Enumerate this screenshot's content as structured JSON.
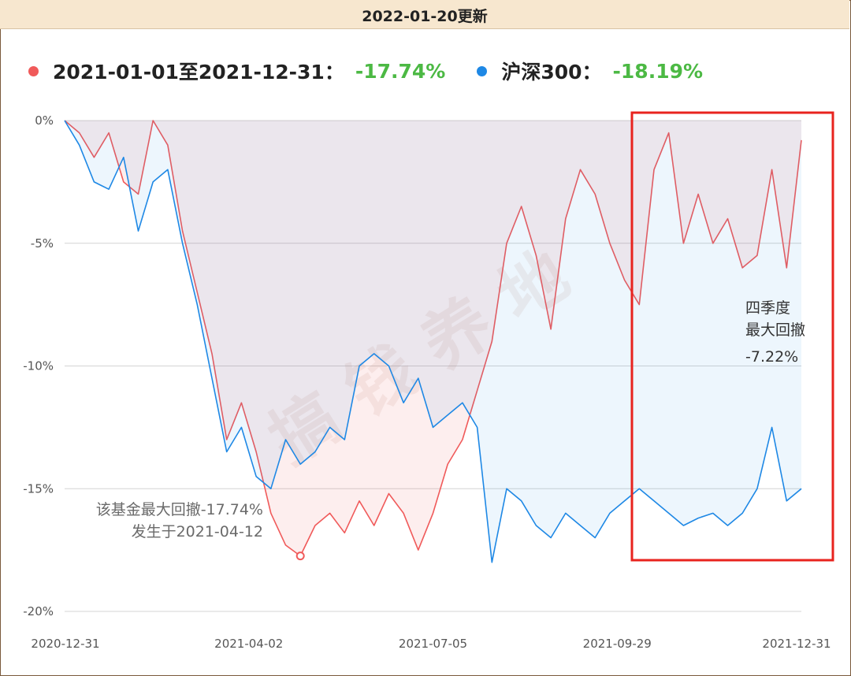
{
  "header": {
    "title": "2022-01-20更新"
  },
  "legend": {
    "fund_label": "2021-01-01至2021-12-31：",
    "fund_value": "-17.74%",
    "index_label": "沪深300：",
    "index_value": "-18.19%"
  },
  "colors": {
    "fund": "#f05a5a",
    "index": "#1e88e5",
    "value_green": "#4cb944",
    "box": "#e8231e"
  },
  "watermark": "搞钱养地",
  "chart_data": {
    "type": "area",
    "ylim": [
      -20,
      0
    ],
    "ytick_labels": [
      "0%",
      "-5%",
      "-10%",
      "-15%",
      "-20%"
    ],
    "xtick_labels": [
      "2020-12-31",
      "2021-04-02",
      "2021-07-05",
      "2021-09-29",
      "2021-12-31"
    ],
    "x": [
      0,
      0.02,
      0.04,
      0.06,
      0.08,
      0.1,
      0.12,
      0.14,
      0.16,
      0.18,
      0.2,
      0.22,
      0.24,
      0.26,
      0.28,
      0.3,
      0.32,
      0.34,
      0.36,
      0.38,
      0.4,
      0.42,
      0.44,
      0.46,
      0.48,
      0.5,
      0.52,
      0.54,
      0.56,
      0.58,
      0.6,
      0.62,
      0.64,
      0.66,
      0.68,
      0.7,
      0.72,
      0.74,
      0.76,
      0.78,
      0.8,
      0.82,
      0.84,
      0.86,
      0.88,
      0.9,
      0.92,
      0.94,
      0.96,
      0.98,
      1.0
    ],
    "series": [
      {
        "name": "2021-01-01至2021-12-31",
        "color": "#f05a5a",
        "values": [
          0,
          -0.5,
          -1.5,
          -0.5,
          -2.5,
          -3.0,
          0,
          -1.0,
          -4.5,
          -7.0,
          -9.5,
          -13.0,
          -11.5,
          -13.5,
          -16.0,
          -17.3,
          -17.74,
          -16.5,
          -16.0,
          -16.8,
          -15.5,
          -16.5,
          -15.2,
          -16.0,
          -17.5,
          -16.0,
          -14.0,
          -13.0,
          -11.0,
          -9.0,
          -5.0,
          -3.5,
          -5.5,
          -8.5,
          -4.0,
          -2.0,
          -3.0,
          -5.0,
          -6.5,
          -7.5,
          -2.0,
          -0.5,
          -5.0,
          -3.0,
          -5.0,
          -4.0,
          -6.0,
          -5.5,
          -2.0,
          -6.0,
          -0.8
        ]
      },
      {
        "name": "沪深300",
        "color": "#1e88e5",
        "values": [
          0,
          -1.0,
          -2.5,
          -2.8,
          -1.5,
          -4.5,
          -2.5,
          -2.0,
          -5.0,
          -7.5,
          -10.5,
          -13.5,
          -12.5,
          -14.5,
          -15.0,
          -13.0,
          -14.0,
          -13.5,
          -12.5,
          -13.0,
          -10.0,
          -9.5,
          -10.0,
          -11.5,
          -10.5,
          -12.5,
          -12.0,
          -11.5,
          -12.5,
          -18.0,
          -15.0,
          -15.5,
          -16.5,
          -17.0,
          -16.0,
          -16.5,
          -17.0,
          -16.0,
          -15.5,
          -15.0,
          -15.5,
          -16.0,
          -16.5,
          -16.2,
          -16.0,
          -16.5,
          -16.0,
          -15.0,
          -12.5,
          -15.5,
          -15.0
        ]
      }
    ],
    "annotations": {
      "max_drawdown_line1": "该基金最大回撤-17.74%",
      "max_drawdown_line2": "发生于2021-04-12",
      "q4_line1": "四季度",
      "q4_line2": "最大回撤",
      "q4_value": "-7.22%"
    }
  }
}
